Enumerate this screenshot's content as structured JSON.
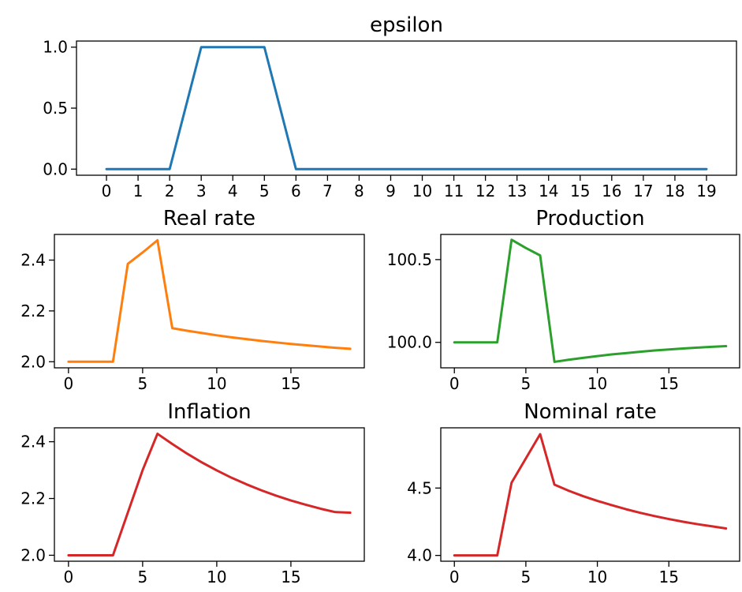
{
  "chart_data": [
    {
      "id": "epsilon",
      "type": "line",
      "title": "epsilon",
      "xlabel": "",
      "ylabel": "",
      "xlim": [
        -0.95,
        19.95
      ],
      "ylim": [
        -0.05,
        1.05
      ],
      "xticks": [
        0,
        1,
        2,
        3,
        4,
        5,
        6,
        7,
        8,
        9,
        10,
        11,
        12,
        13,
        14,
        15,
        16,
        17,
        18,
        19
      ],
      "yticks": [
        0.0,
        0.5,
        1.0
      ],
      "ytick_labels": [
        "0.0",
        "0.5",
        "1.0"
      ],
      "grid": false,
      "color": "#1f77b4",
      "x": [
        0,
        1,
        2,
        3,
        4,
        5,
        6,
        7,
        8,
        9,
        10,
        11,
        12,
        13,
        14,
        15,
        16,
        17,
        18,
        19
      ],
      "y": [
        0,
        0,
        0,
        1,
        1,
        1,
        0,
        0,
        0,
        0,
        0,
        0,
        0,
        0,
        0,
        0,
        0,
        0,
        0,
        0
      ]
    },
    {
      "id": "real-rate",
      "type": "line",
      "title": "Real rate",
      "xlabel": "",
      "ylabel": "",
      "xlim": [
        -0.95,
        19.95
      ],
      "ylim": [
        1.976,
        2.501
      ],
      "xticks": [
        0,
        5,
        10,
        15
      ],
      "yticks": [
        2.0,
        2.2,
        2.4
      ],
      "ytick_labels": [
        "2.0",
        "2.2",
        "2.4"
      ],
      "grid": false,
      "color": "#ff7f0e",
      "x": [
        0,
        1,
        2,
        3,
        4,
        5,
        6,
        7,
        8,
        9,
        10,
        11,
        12,
        13,
        14,
        15,
        16,
        17,
        18,
        19
      ],
      "y": [
        2.0,
        2.0,
        2.0,
        2.0,
        2.385,
        2.43,
        2.478,
        2.132,
        2.122,
        2.113,
        2.104,
        2.096,
        2.089,
        2.082,
        2.076,
        2.07,
        2.065,
        2.06,
        2.055,
        2.051
      ]
    },
    {
      "id": "production",
      "type": "line",
      "title": "Production",
      "xlabel": "",
      "ylabel": "",
      "xlim": [
        -0.95,
        19.95
      ],
      "ylim": [
        99.846,
        100.652
      ],
      "xticks": [
        0,
        5,
        10,
        15
      ],
      "yticks": [
        100.0,
        100.5
      ],
      "ytick_labels": [
        "100.0",
        "100.5"
      ],
      "grid": false,
      "color": "#2ca02c",
      "x": [
        0,
        1,
        2,
        3,
        4,
        5,
        6,
        7,
        8,
        9,
        10,
        11,
        12,
        13,
        14,
        15,
        16,
        17,
        18,
        19
      ],
      "y": [
        100.0,
        100.0,
        100.0,
        100.0,
        100.62,
        100.57,
        100.525,
        99.882,
        99.895,
        99.906,
        99.917,
        99.927,
        99.935,
        99.943,
        99.951,
        99.957,
        99.963,
        99.968,
        99.973,
        99.977
      ]
    },
    {
      "id": "inflation",
      "type": "line",
      "title": "Inflation",
      "xlabel": "",
      "ylabel": "",
      "xlim": [
        -0.95,
        19.95
      ],
      "ylim": [
        1.979,
        2.449
      ],
      "xticks": [
        0,
        5,
        10,
        15
      ],
      "yticks": [
        2.0,
        2.2,
        2.4
      ],
      "ytick_labels": [
        "2.0",
        "2.2",
        "2.4"
      ],
      "grid": false,
      "color": "#d62728",
      "x": [
        0,
        1,
        2,
        3,
        4,
        5,
        6,
        7,
        8,
        9,
        10,
        11,
        12,
        13,
        14,
        15,
        16,
        17,
        18,
        19
      ],
      "y": [
        2.0,
        2.0,
        2.0,
        2.0,
        2.15,
        2.3,
        2.428,
        2.392,
        2.358,
        2.327,
        2.299,
        2.273,
        2.25,
        2.229,
        2.21,
        2.193,
        2.178,
        2.164,
        2.152,
        2.15
      ]
    },
    {
      "id": "nominal-rate",
      "type": "line",
      "title": "Nominal rate",
      "xlabel": "",
      "ylabel": "",
      "xlim": [
        -0.95,
        19.95
      ],
      "ylim": [
        3.957,
        4.947
      ],
      "xticks": [
        0,
        5,
        10,
        15
      ],
      "yticks": [
        4.0,
        4.5
      ],
      "ytick_labels": [
        "4.0",
        "4.5"
      ],
      "grid": false,
      "color": "#d62728",
      "x": [
        0,
        1,
        2,
        3,
        4,
        5,
        6,
        7,
        8,
        9,
        10,
        11,
        12,
        13,
        14,
        15,
        16,
        17,
        18,
        19
      ],
      "y": [
        4.0,
        4.0,
        4.0,
        4.0,
        4.54,
        4.72,
        4.9,
        4.525,
        4.48,
        4.44,
        4.405,
        4.373,
        4.343,
        4.316,
        4.292,
        4.27,
        4.25,
        4.232,
        4.216,
        4.2
      ]
    }
  ]
}
